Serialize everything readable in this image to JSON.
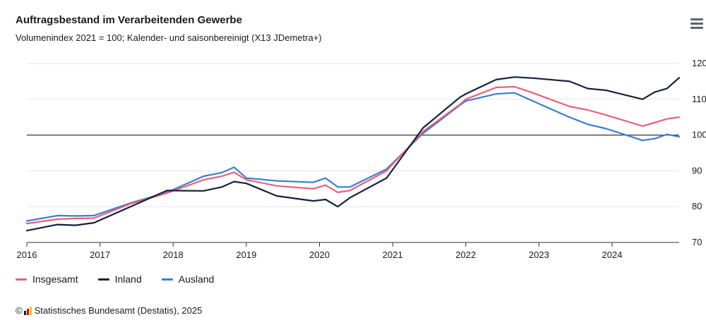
{
  "header": {
    "title": "Auftragsbestand im Verarbeitenden Gewerbe",
    "subtitle": "Volumenindex 2021 = 100; Kalender- und saisonbereinigt (X13 JDemetra+)"
  },
  "credits": {
    "copyright_symbol": "©",
    "text": "Statistisches Bundesamt (Destatis), 2025"
  },
  "colors": {
    "insgesamt": "#e8607a",
    "inland": "#14213d",
    "ausland": "#3a7fd0",
    "grid": "#e6e6e6",
    "baseline": "#333333"
  },
  "chart_data": {
    "type": "line",
    "title": "Auftragsbestand im Verarbeitenden Gewerbe",
    "subtitle": "Volumenindex 2021 = 100; Kalender- und saisonbereinigt (X13 JDemetra+)",
    "x_ticks": [
      "2016",
      "2017",
      "2018",
      "2019",
      "2020",
      "2021",
      "2022",
      "2023",
      "2024"
    ],
    "y_ticks": [
      "70",
      "80",
      "90",
      "100",
      "110",
      "120"
    ],
    "ylim": [
      70,
      120
    ],
    "xlim": [
      "2016-01",
      "2024-12"
    ],
    "y_axis_side": "right",
    "reference_line": 100,
    "grid": "horizontal",
    "legend_position": "bottom-left",
    "series": [
      {
        "name": "Insgesamt",
        "color": "#e8607a",
        "points": [
          [
            "2016-01",
            75.3
          ],
          [
            "2016-06",
            76.5
          ],
          [
            "2016-09",
            76.7
          ],
          [
            "2016-12",
            76.8
          ],
          [
            "2017-06",
            80.8
          ],
          [
            "2017-12",
            83.8
          ],
          [
            "2018-06",
            87.5
          ],
          [
            "2018-09",
            88.5
          ],
          [
            "2018-11",
            89.6
          ],
          [
            "2019-01",
            87.5
          ],
          [
            "2019-06",
            85.8
          ],
          [
            "2019-12",
            85.0
          ],
          [
            "2020-02",
            86.0
          ],
          [
            "2020-04",
            84.0
          ],
          [
            "2020-06",
            84.5
          ],
          [
            "2020-12",
            90.0
          ],
          [
            "2021-06",
            101.0
          ],
          [
            "2021-12",
            108.5
          ],
          [
            "2022-01",
            110.0
          ],
          [
            "2022-06",
            113.3
          ],
          [
            "2022-09",
            113.5
          ],
          [
            "2022-12",
            111.8
          ],
          [
            "2023-06",
            108.0
          ],
          [
            "2023-09",
            107.0
          ],
          [
            "2023-12",
            105.6
          ],
          [
            "2024-06",
            102.5
          ],
          [
            "2024-08",
            103.5
          ],
          [
            "2024-10",
            104.5
          ],
          [
            "2024-12",
            105.0
          ]
        ]
      },
      {
        "name": "Inland",
        "color": "#14213d",
        "points": [
          [
            "2016-01",
            73.3
          ],
          [
            "2016-06",
            75.0
          ],
          [
            "2016-09",
            74.8
          ],
          [
            "2016-12",
            75.5
          ],
          [
            "2017-06",
            80.0
          ],
          [
            "2017-12",
            84.5
          ],
          [
            "2018-06",
            84.4
          ],
          [
            "2018-09",
            85.5
          ],
          [
            "2018-11",
            87.0
          ],
          [
            "2019-01",
            86.5
          ],
          [
            "2019-06",
            83.0
          ],
          [
            "2019-12",
            81.6
          ],
          [
            "2020-02",
            82.0
          ],
          [
            "2020-04",
            80.0
          ],
          [
            "2020-06",
            82.5
          ],
          [
            "2020-12",
            88.0
          ],
          [
            "2021-06",
            102.0
          ],
          [
            "2021-12",
            110.5
          ],
          [
            "2022-01",
            111.5
          ],
          [
            "2022-06",
            115.5
          ],
          [
            "2022-09",
            116.2
          ],
          [
            "2022-12",
            115.9
          ],
          [
            "2023-06",
            115.0
          ],
          [
            "2023-09",
            113.0
          ],
          [
            "2023-12",
            112.5
          ],
          [
            "2024-06",
            110.0
          ],
          [
            "2024-08",
            112.0
          ],
          [
            "2024-10",
            113.0
          ],
          [
            "2024-12",
            116.0
          ]
        ]
      },
      {
        "name": "Ausland",
        "color": "#3a7fd0",
        "points": [
          [
            "2016-01",
            76.0
          ],
          [
            "2016-06",
            77.5
          ],
          [
            "2016-09",
            77.4
          ],
          [
            "2016-12",
            77.5
          ],
          [
            "2017-06",
            81.0
          ],
          [
            "2017-12",
            84.0
          ],
          [
            "2018-06",
            88.5
          ],
          [
            "2018-09",
            89.5
          ],
          [
            "2018-11",
            91.0
          ],
          [
            "2019-01",
            88.0
          ],
          [
            "2019-06",
            87.2
          ],
          [
            "2019-12",
            86.8
          ],
          [
            "2020-02",
            88.0
          ],
          [
            "2020-04",
            85.5
          ],
          [
            "2020-06",
            85.5
          ],
          [
            "2020-12",
            90.5
          ],
          [
            "2021-06",
            100.5
          ],
          [
            "2021-12",
            108.3
          ],
          [
            "2022-01",
            109.5
          ],
          [
            "2022-06",
            111.5
          ],
          [
            "2022-09",
            111.8
          ],
          [
            "2022-12",
            109.5
          ],
          [
            "2023-06",
            105.0
          ],
          [
            "2023-09",
            103.0
          ],
          [
            "2023-12",
            101.8
          ],
          [
            "2024-06",
            98.5
          ],
          [
            "2024-08",
            99.0
          ],
          [
            "2024-10",
            100.2
          ],
          [
            "2024-12",
            99.5
          ]
        ]
      }
    ]
  }
}
